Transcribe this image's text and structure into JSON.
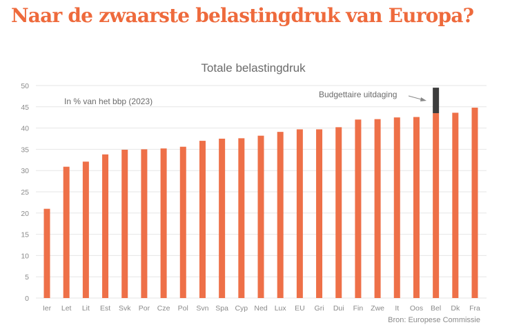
{
  "headline": "Naar de zwaarste belastingdruk van Europa?",
  "colors": {
    "headline": "#EE6A3C",
    "bar": "#EE7048",
    "highlight": "#3D3D3D",
    "grid": "#E6E6E6",
    "text": "#7A7A7A"
  },
  "chart_data": {
    "type": "bar",
    "title": "Totale belastingdruk",
    "subtitle": "In % van het bbp (2023)",
    "source": "Bron: Europese Commissie",
    "annotation": "Budgettaire uitdaging",
    "ylim": [
      0,
      50
    ],
    "yticks": [
      0,
      5,
      10,
      15,
      20,
      25,
      30,
      35,
      40,
      45,
      50
    ],
    "grid": true,
    "categories": [
      "Ier",
      "Let",
      "Lit",
      "Est",
      "Svk",
      "Por",
      "Cze",
      "Pol",
      "Svn",
      "Spa",
      "Cyp",
      "Ned",
      "Lux",
      "EU",
      "Gri",
      "Dui",
      "Fin",
      "Zwe",
      "It",
      "Oos",
      "Bel",
      "Dk",
      "Fra"
    ],
    "values": [
      21.0,
      30.9,
      32.1,
      33.8,
      34.9,
      35.0,
      35.2,
      35.6,
      37.0,
      37.5,
      37.6,
      38.2,
      39.1,
      39.7,
      39.7,
      40.2,
      42.0,
      42.1,
      42.5,
      42.6,
      43.5,
      43.6,
      44.8
    ],
    "stacked_extra": {
      "category": "Bel",
      "value": 6.0,
      "label": "Budgettaire uitdaging"
    }
  }
}
